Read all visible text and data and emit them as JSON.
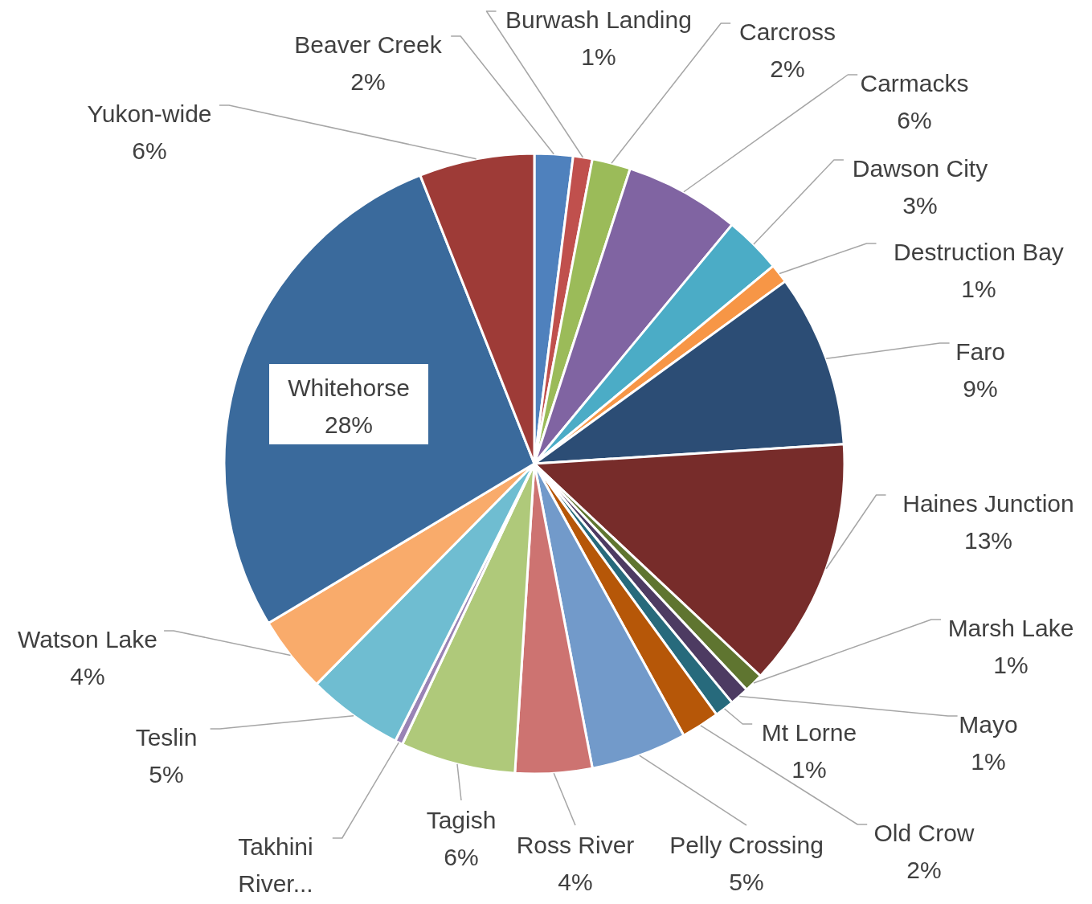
{
  "chart_data": {
    "type": "pie",
    "categories": [
      "Beaver Creek",
      "Burwash Landing",
      "Carcross",
      "Carmacks",
      "Dawson City",
      "Destruction Bay",
      "Faro",
      "Haines Junction",
      "Marsh Lake",
      "Mayo",
      "Mt Lorne",
      "Old Crow",
      "Pelly Crossing",
      "Ross River",
      "Tagish",
      "Takhini River...",
      "Teslin",
      "Watson Lake",
      "Whitehorse",
      "Yukon-wide"
    ],
    "values": [
      2,
      1,
      2,
      6,
      3,
      1,
      9,
      13,
      1,
      1,
      1,
      2,
      5,
      4,
      6,
      0.4,
      5,
      4,
      27.6,
      6
    ],
    "value_labels": [
      "2%",
      "1%",
      "2%",
      "6%",
      "3%",
      "1%",
      "9%",
      "13%",
      "1%",
      "1%",
      "1%",
      "2%",
      "5%",
      "4%",
      "6%",
      null,
      "5%",
      "4%",
      "28%",
      "6%"
    ],
    "colors": [
      "#4f81bd",
      "#c0504d",
      "#9bbb59",
      "#8064a2",
      "#4bacc6",
      "#f79646",
      "#2c4d75",
      "#772c2a",
      "#5f7530",
      "#4d3b62",
      "#276a7c",
      "#b65708",
      "#729aca",
      "#cd7371",
      "#afc97a",
      "#9983b5",
      "#6fbdd1",
      "#f9ab6b",
      "#3a6a9c",
      "#9e3b37"
    ]
  }
}
